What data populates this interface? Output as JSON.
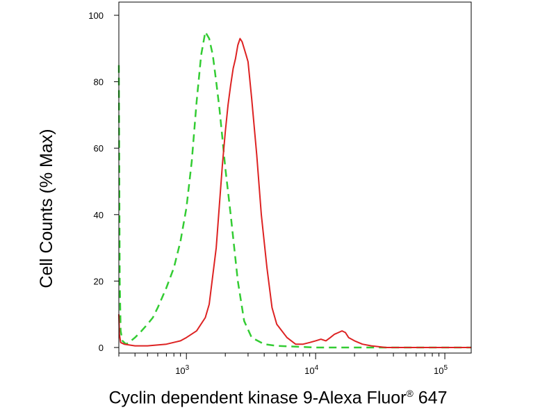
{
  "chart_data": {
    "type": "line",
    "xscale": "log",
    "xlim": [
      300,
      160000
    ],
    "ylim": [
      0,
      104
    ],
    "ylabel": "Cell Counts (% Max)",
    "xlabel": {
      "main": "Cyclin dependent kinase 9-Alexa Fluor",
      "sup": "®",
      "tail": " 647"
    },
    "x_ticks": [
      {
        "value": 1000,
        "base": "10",
        "exp": "3"
      },
      {
        "value": 10000,
        "base": "10",
        "exp": "4"
      },
      {
        "value": 100000,
        "base": "10",
        "exp": "5"
      }
    ],
    "y_ticks": [
      0,
      20,
      40,
      60,
      80,
      100
    ],
    "series": [
      {
        "color": "#33cc33",
        "dash": "dashed",
        "points": [
          [
            300,
            85
          ],
          [
            302,
            60
          ],
          [
            305,
            20
          ],
          [
            310,
            5
          ],
          [
            320,
            2
          ],
          [
            340,
            1
          ],
          [
            360,
            1.5
          ],
          [
            400,
            3
          ],
          [
            450,
            5
          ],
          [
            500,
            7
          ],
          [
            550,
            9
          ],
          [
            600,
            12
          ],
          [
            700,
            18
          ],
          [
            800,
            24
          ],
          [
            900,
            32
          ],
          [
            1000,
            42
          ],
          [
            1100,
            56
          ],
          [
            1200,
            74
          ],
          [
            1300,
            88
          ],
          [
            1400,
            95
          ],
          [
            1500,
            93
          ],
          [
            1600,
            88
          ],
          [
            1700,
            80
          ],
          [
            1800,
            72
          ],
          [
            1900,
            63
          ],
          [
            2000,
            54
          ],
          [
            2200,
            40
          ],
          [
            2500,
            20
          ],
          [
            2800,
            8
          ],
          [
            3200,
            3
          ],
          [
            4000,
            1
          ],
          [
            5000,
            0.5
          ],
          [
            10000,
            0
          ],
          [
            160000,
            0
          ]
        ]
      },
      {
        "color": "#dd2222",
        "dash": "solid",
        "points": [
          [
            300,
            10
          ],
          [
            303,
            4
          ],
          [
            310,
            1.5
          ],
          [
            330,
            1
          ],
          [
            400,
            0.5
          ],
          [
            500,
            0.5
          ],
          [
            700,
            1
          ],
          [
            900,
            2
          ],
          [
            1000,
            3
          ],
          [
            1200,
            5
          ],
          [
            1400,
            9
          ],
          [
            1500,
            13
          ],
          [
            1700,
            30
          ],
          [
            1800,
            43
          ],
          [
            1900,
            55
          ],
          [
            2000,
            65
          ],
          [
            2100,
            73
          ],
          [
            2200,
            79
          ],
          [
            2300,
            84
          ],
          [
            2400,
            87
          ],
          [
            2500,
            91
          ],
          [
            2600,
            93
          ],
          [
            2700,
            92
          ],
          [
            2800,
            90
          ],
          [
            2900,
            88
          ],
          [
            3000,
            86
          ],
          [
            3200,
            75
          ],
          [
            3500,
            58
          ],
          [
            3800,
            40
          ],
          [
            4200,
            24
          ],
          [
            4600,
            12
          ],
          [
            5000,
            7
          ],
          [
            6000,
            3
          ],
          [
            7000,
            1
          ],
          [
            8000,
            1
          ],
          [
            9000,
            1.5
          ],
          [
            10000,
            2
          ],
          [
            11000,
            2.5
          ],
          [
            12000,
            2
          ],
          [
            13000,
            3
          ],
          [
            14000,
            4
          ],
          [
            15000,
            4.5
          ],
          [
            16000,
            5
          ],
          [
            17000,
            4.5
          ],
          [
            18000,
            3
          ],
          [
            20000,
            2
          ],
          [
            23000,
            1
          ],
          [
            27000,
            0.5
          ],
          [
            35000,
            0
          ],
          [
            100000,
            0
          ],
          [
            160000,
            0
          ]
        ]
      }
    ]
  }
}
